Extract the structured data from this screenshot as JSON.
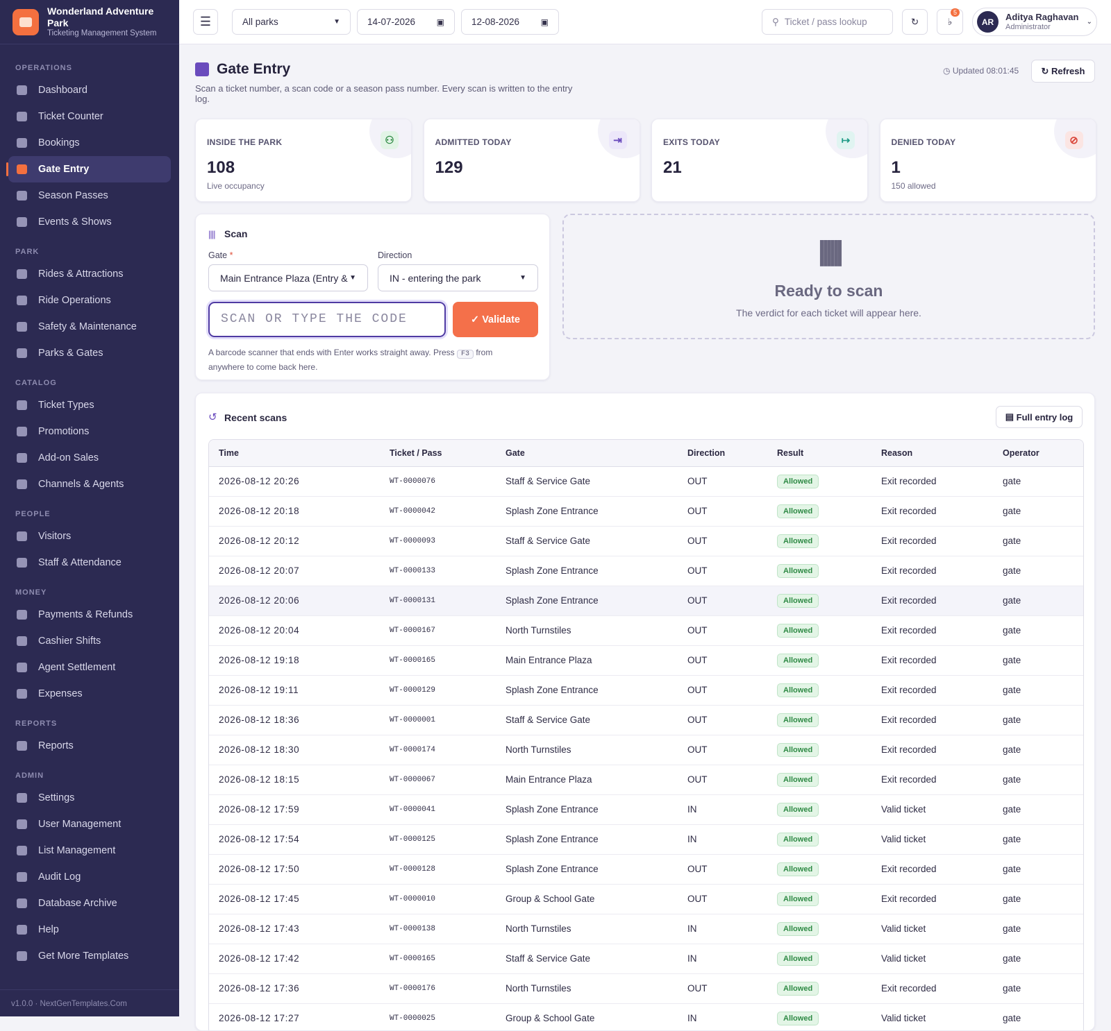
{
  "brand": {
    "name": "Wonderland Adventure Park",
    "subtitle": "Ticketing Management System"
  },
  "topbar": {
    "park_select": "All parks",
    "date_from": "14-07-2026",
    "date_to": "12-08-2026",
    "search_placeholder": "Ticket / pass lookup",
    "notifications": "5",
    "user": {
      "initials": "AR",
      "name": "Aditya Raghavan",
      "role": "Administrator"
    }
  },
  "nav": [
    {
      "section": "OPERATIONS",
      "items": [
        "Dashboard",
        "Ticket Counter",
        "Bookings",
        "Gate Entry",
        "Season Passes",
        "Events & Shows"
      ]
    },
    {
      "section": "PARK",
      "items": [
        "Rides & Attractions",
        "Ride Operations",
        "Safety & Maintenance",
        "Parks & Gates"
      ]
    },
    {
      "section": "CATALOG",
      "items": [
        "Ticket Types",
        "Promotions",
        "Add-on Sales",
        "Channels & Agents"
      ]
    },
    {
      "section": "PEOPLE",
      "items": [
        "Visitors",
        "Staff & Attendance"
      ]
    },
    {
      "section": "MONEY",
      "items": [
        "Payments & Refunds",
        "Cashier Shifts",
        "Agent Settlement",
        "Expenses"
      ]
    },
    {
      "section": "REPORTS",
      "items": [
        "Reports"
      ]
    },
    {
      "section": "ADMIN",
      "items": [
        "Settings",
        "User Management",
        "List Management",
        "Audit Log",
        "Database Archive",
        "Help",
        "Get More Templates"
      ]
    }
  ],
  "active_nav": "Gate Entry",
  "footer": "v1.0.0 · NextGenTemplates.Com",
  "page": {
    "title": "Gate Entry",
    "description": "Scan a ticket number, a scan code or a season pass number. Every scan is written to the entry log.",
    "updated": "Updated 08:01:45",
    "refresh": "Refresh"
  },
  "stats": [
    {
      "label": "INSIDE THE PARK",
      "value": "108",
      "note": "Live occupancy"
    },
    {
      "label": "ADMITTED TODAY",
      "value": "129"
    },
    {
      "label": "EXITS TODAY",
      "value": "21"
    },
    {
      "label": "DENIED TODAY",
      "value": "1",
      "note": "150 allowed"
    }
  ],
  "scan": {
    "title": "Scan",
    "gate_label": "Gate",
    "required": "*",
    "gate_value": "Main Entrance Plaza (Entry &",
    "direction_label": "Direction",
    "direction_value": "IN - entering the park",
    "placeholder": "SCAN OR TYPE THE CODE",
    "validate": "Validate",
    "help_before": "A barcode scanner that ends with Enter works straight away. Press",
    "key": "F3",
    "help_after": "from anywhere to come back here."
  },
  "verdict": {
    "title": "Ready to scan",
    "text": "The verdict for each ticket will appear here."
  },
  "recent": {
    "title": "Recent scans",
    "button": "Full entry log",
    "columns": [
      "Time",
      "Ticket / Pass",
      "Gate",
      "Direction",
      "Result",
      "Reason",
      "Operator"
    ],
    "rows": [
      [
        "2026-08-12 20:26",
        "WT-0000076",
        "Staff & Service Gate",
        "OUT",
        "Allowed",
        "Exit recorded",
        "gate"
      ],
      [
        "2026-08-12 20:18",
        "WT-0000042",
        "Splash Zone Entrance",
        "OUT",
        "Allowed",
        "Exit recorded",
        "gate"
      ],
      [
        "2026-08-12 20:12",
        "WT-0000093",
        "Staff & Service Gate",
        "OUT",
        "Allowed",
        "Exit recorded",
        "gate"
      ],
      [
        "2026-08-12 20:07",
        "WT-0000133",
        "Splash Zone Entrance",
        "OUT",
        "Allowed",
        "Exit recorded",
        "gate"
      ],
      [
        "2026-08-12 20:06",
        "WT-0000131",
        "Splash Zone Entrance",
        "OUT",
        "Allowed",
        "Exit recorded",
        "gate"
      ],
      [
        "2026-08-12 20:04",
        "WT-0000167",
        "North Turnstiles",
        "OUT",
        "Allowed",
        "Exit recorded",
        "gate"
      ],
      [
        "2026-08-12 19:18",
        "WT-0000165",
        "Main Entrance Plaza",
        "OUT",
        "Allowed",
        "Exit recorded",
        "gate"
      ],
      [
        "2026-08-12 19:11",
        "WT-0000129",
        "Splash Zone Entrance",
        "OUT",
        "Allowed",
        "Exit recorded",
        "gate"
      ],
      [
        "2026-08-12 18:36",
        "WT-0000001",
        "Staff & Service Gate",
        "OUT",
        "Allowed",
        "Exit recorded",
        "gate"
      ],
      [
        "2026-08-12 18:30",
        "WT-0000174",
        "North Turnstiles",
        "OUT",
        "Allowed",
        "Exit recorded",
        "gate"
      ],
      [
        "2026-08-12 18:15",
        "WT-0000067",
        "Main Entrance Plaza",
        "OUT",
        "Allowed",
        "Exit recorded",
        "gate"
      ],
      [
        "2026-08-12 17:59",
        "WT-0000041",
        "Splash Zone Entrance",
        "IN",
        "Allowed",
        "Valid ticket",
        "gate"
      ],
      [
        "2026-08-12 17:54",
        "WT-0000125",
        "Splash Zone Entrance",
        "IN",
        "Allowed",
        "Valid ticket",
        "gate"
      ],
      [
        "2026-08-12 17:50",
        "WT-0000128",
        "Splash Zone Entrance",
        "OUT",
        "Allowed",
        "Exit recorded",
        "gate"
      ],
      [
        "2026-08-12 17:45",
        "WT-0000010",
        "Group & School Gate",
        "OUT",
        "Allowed",
        "Exit recorded",
        "gate"
      ],
      [
        "2026-08-12 17:43",
        "WT-0000138",
        "North Turnstiles",
        "IN",
        "Allowed",
        "Valid ticket",
        "gate"
      ],
      [
        "2026-08-12 17:42",
        "WT-0000165",
        "Staff & Service Gate",
        "IN",
        "Allowed",
        "Valid ticket",
        "gate"
      ],
      [
        "2026-08-12 17:36",
        "WT-0000176",
        "North Turnstiles",
        "OUT",
        "Allowed",
        "Exit recorded",
        "gate"
      ],
      [
        "2026-08-12 17:27",
        "WT-0000025",
        "Group & School Gate",
        "IN",
        "Allowed",
        "Valid ticket",
        "gate"
      ]
    ]
  }
}
